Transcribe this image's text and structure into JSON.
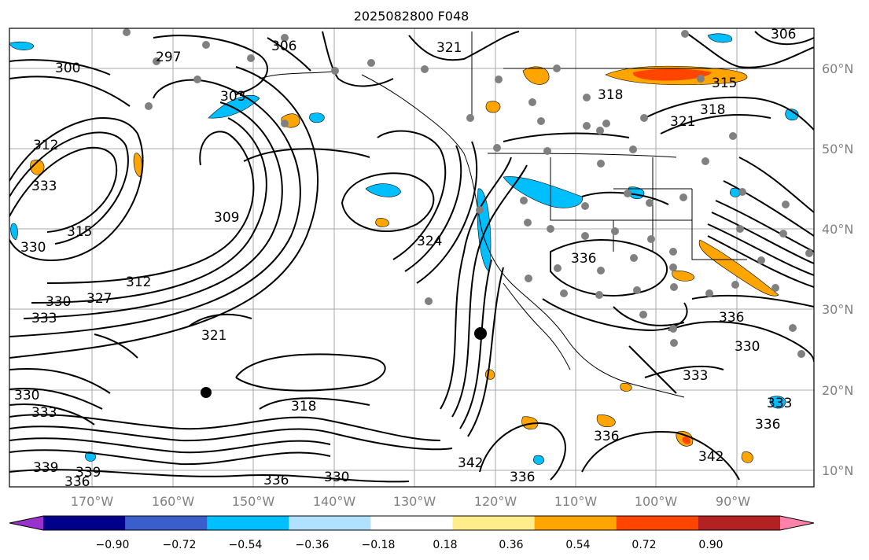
{
  "map_title": "2025082800 F048",
  "lon_ticks": [
    "170°W",
    "160°W",
    "150°W",
    "140°W",
    "130°W",
    "120°W",
    "110°W",
    "100°W",
    "90°W"
  ],
  "lat_ticks": [
    "60°N",
    "50°N",
    "40°N",
    "30°N",
    "20°N",
    "10°N"
  ],
  "colorbar": {
    "colors": [
      "#9932cc",
      "#00008b",
      "#3a5fcd",
      "#00bfff",
      "#b0e2ff",
      "#ffffff",
      "#ffec8b",
      "#ffa500",
      "#ff4500",
      "#b22222",
      "#ff82ab"
    ],
    "tick_labels": [
      "−0.90",
      "−0.72",
      "−0.54",
      "−0.36",
      "−0.18",
      "0.18",
      "0.36",
      "0.54",
      "0.72",
      "0.90"
    ]
  },
  "contour_labels": [
    "297",
    "300",
    "303",
    "306",
    "309",
    "312",
    "315",
    "318",
    "321",
    "324",
    "327",
    "330",
    "333",
    "336",
    "339",
    "342"
  ]
}
